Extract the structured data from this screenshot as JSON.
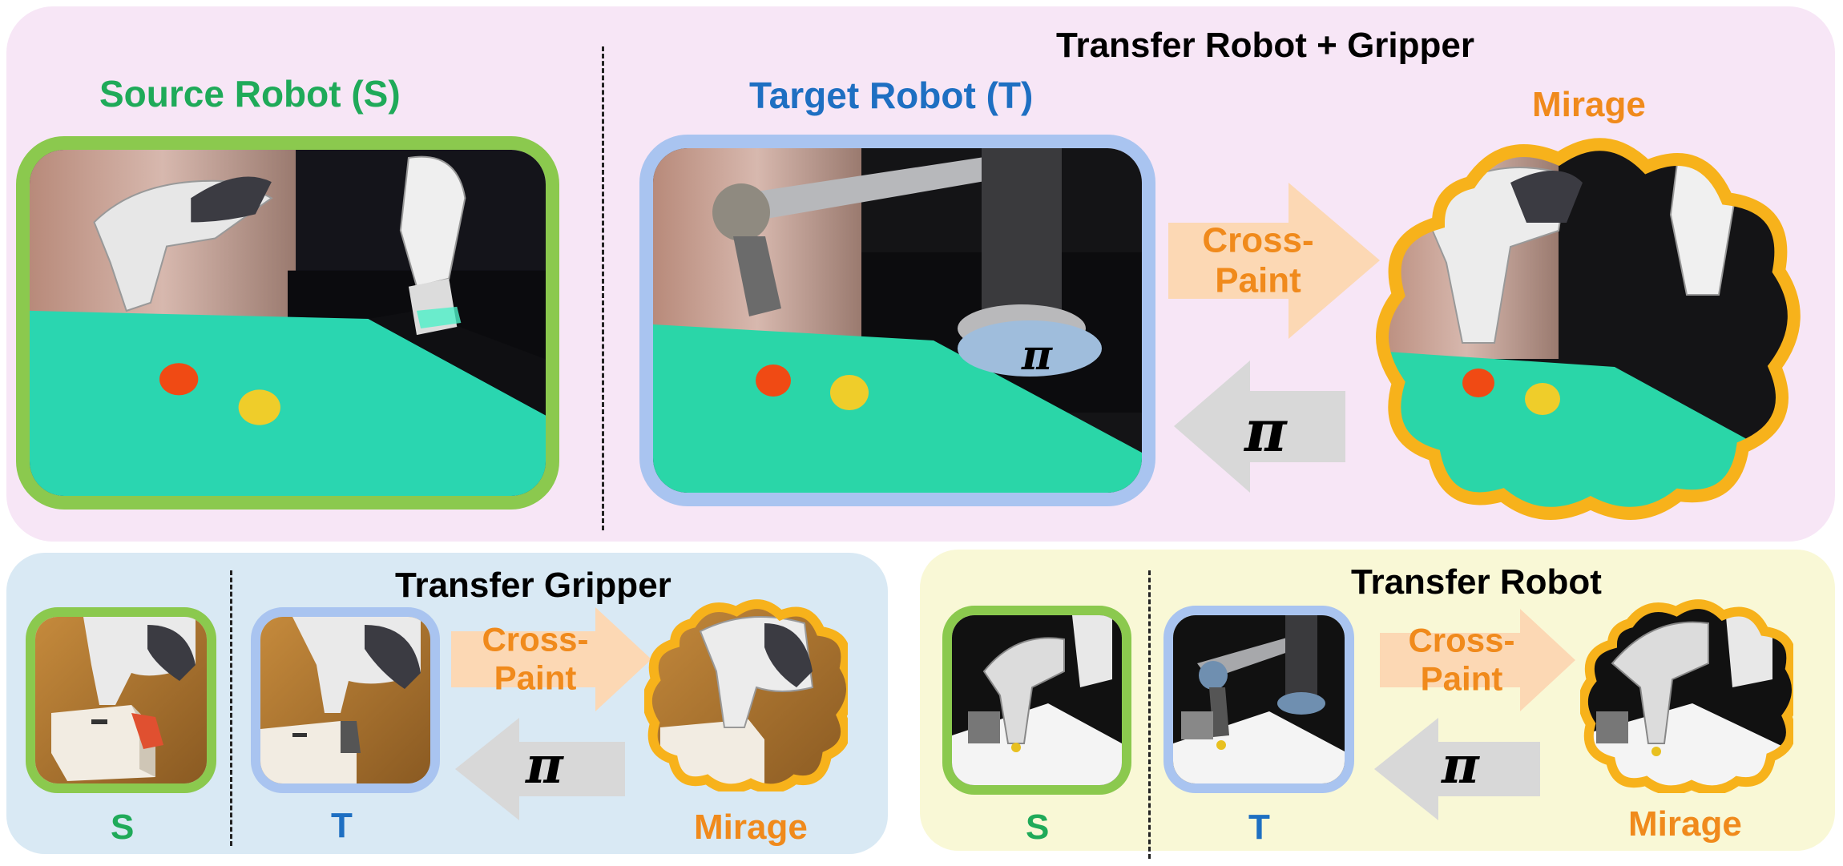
{
  "colors": {
    "source_green": "#1faa59",
    "target_blue": "#1e6fc2",
    "mirage_orange": "#f08a1c",
    "source_frame": "#8bc94e",
    "target_frame": "#a9c4f0",
    "mirage_frame": "#f7b21b",
    "crosspaint_arrow": "#fcd8b4",
    "pi_arrow": "#d8d8d8",
    "panel_top": "#f7e6f6",
    "panel_bottom_left": "#d9e9f4",
    "panel_bottom_right": "#f9f8d6"
  },
  "top": {
    "title": "Transfer Robot + Gripper",
    "source_label": "Source Robot (S)",
    "target_label": "Target Robot (T)",
    "mirage_label": "Mirage",
    "crosspaint_label": "Cross-\nPaint",
    "pi_arrow_label": "π",
    "pi_in_photo": "π"
  },
  "bottom_left": {
    "title": "Transfer Gripper",
    "s_label": "S",
    "t_label": "T",
    "mirage_label": "Mirage",
    "crosspaint_label": "Cross-\nPaint",
    "pi_arrow_label": "π"
  },
  "bottom_right": {
    "title": "Transfer Robot",
    "s_label": "S",
    "t_label": "T",
    "mirage_label": "Mirage",
    "crosspaint_label": "Cross-\nPaint",
    "pi_arrow_label": "π"
  }
}
